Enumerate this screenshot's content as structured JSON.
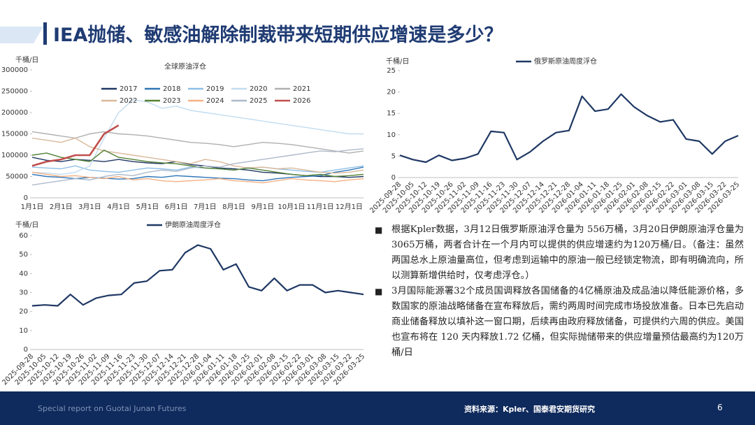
{
  "header": {
    "title": "IEA抛储、敏感油解除制裁带来短期供应增速是多少？"
  },
  "chart_data": [
    {
      "type": "line",
      "title": "全球原油浮仓",
      "y_axis_label": "千桶/日",
      "categories": [
        "1月1日",
        null,
        "2月1日",
        null,
        "3月1日",
        null,
        "4月1日",
        null,
        "5月1日",
        null,
        "6月1日",
        null,
        "7月1日",
        null,
        "8月1日",
        null,
        "9月1日",
        null,
        "10月1日",
        null,
        "11月1日",
        null,
        "12月1日",
        null
      ],
      "ylim": [
        0,
        300000
      ],
      "yticks": [
        0,
        50000,
        100000,
        150000,
        200000,
        250000,
        300000
      ],
      "grid": false,
      "series": [
        {
          "name": "2017",
          "color": "#1f3864",
          "values": [
            95000,
            88000,
            85000,
            90000,
            88000,
            85000,
            90000,
            85000,
            82000,
            80000,
            85000,
            78000,
            75000,
            70000,
            68000,
            65000,
            60000,
            58000,
            55000,
            52000,
            50000,
            50000,
            48000,
            50000
          ]
        },
        {
          "name": "2018",
          "color": "#2e75b6",
          "values": [
            55000,
            50000,
            48000,
            45000,
            48000,
            46000,
            44000,
            45000,
            50000,
            48000,
            52000,
            50000,
            48000,
            46000,
            45000,
            42000,
            40000,
            45000,
            48000,
            50000,
            52000,
            60000,
            65000,
            72000
          ]
        },
        {
          "name": "2019",
          "color": "#8fbfe6",
          "values": [
            72000,
            70000,
            68000,
            75000,
            65000,
            62000,
            60000,
            65000,
            70000,
            68000,
            65000,
            72000,
            70000,
            68000,
            65000,
            70000,
            72000,
            68000,
            65000,
            62000,
            60000,
            65000,
            70000,
            75000
          ]
        },
        {
          "name": "2020",
          "color": "#c2dcf0",
          "values": [
            60000,
            58000,
            55000,
            60000,
            75000,
            140000,
            200000,
            230000,
            225000,
            210000,
            215000,
            205000,
            200000,
            195000,
            190000,
            185000,
            180000,
            175000,
            170000,
            165000,
            160000,
            155000,
            150000,
            150000
          ]
        },
        {
          "name": "2021",
          "color": "#b0b0b0",
          "values": [
            155000,
            150000,
            145000,
            140000,
            150000,
            155000,
            150000,
            148000,
            145000,
            140000,
            135000,
            130000,
            128000,
            125000,
            120000,
            125000,
            130000,
            128000,
            125000,
            120000,
            115000,
            110000,
            105000,
            110000
          ]
        },
        {
          "name": "2022",
          "color": "#d9b99b",
          "values": [
            140000,
            135000,
            130000,
            140000,
            120000,
            110000,
            105000,
            100000,
            95000,
            90000,
            85000,
            80000,
            90000,
            85000,
            75000,
            70000,
            72000,
            68000,
            70000,
            65000,
            60000,
            58000,
            60000,
            65000
          ]
        },
        {
          "name": "2023",
          "color": "#548235",
          "values": [
            100000,
            105000,
            95000,
            90000,
            85000,
            112000,
            95000,
            90000,
            85000,
            82000,
            80000,
            75000,
            70000,
            68000,
            65000,
            70000,
            65000,
            60000,
            55000,
            52000,
            55000,
            50000,
            52000,
            55000
          ]
        },
        {
          "name": "2024",
          "color": "#f4b183",
          "values": [
            60000,
            55000,
            50000,
            52000,
            48000,
            45000,
            50000,
            42000,
            45000,
            40000,
            38000,
            40000,
            42000,
            45000,
            40000,
            38000,
            35000,
            40000,
            45000,
            42000,
            40000,
            38000,
            42000,
            45000
          ]
        },
        {
          "name": "2025",
          "color": "#adb9ca",
          "values": [
            30000,
            35000,
            40000,
            45000,
            42000,
            50000,
            55000,
            52000,
            60000,
            65000,
            62000,
            70000,
            75000,
            72000,
            80000,
            85000,
            90000,
            95000,
            100000,
            105000,
            110000,
            108000,
            112000,
            115000
          ]
        },
        {
          "name": "2026",
          "color": "#c0504d",
          "values": [
            75000,
            85000,
            90000,
            100000,
            100000,
            150000,
            170000,
            null,
            null,
            null,
            null,
            null,
            null,
            null,
            null,
            null,
            null,
            null,
            null,
            null,
            null,
            null,
            null,
            null
          ]
        }
      ]
    },
    {
      "type": "line",
      "y_axis_label": "千桶/日",
      "categories": [
        "2025-09-28",
        "2025-10-05",
        "2025-10-12",
        "2025-10-19",
        "2025-10-26",
        "2025-11-02",
        "2025-11-09",
        "2025-11-16",
        "2025-11-23",
        "2025-11-30",
        "2025-12-07",
        "2025-12-14",
        "2025-12-21",
        "2025-12-28",
        "2026-01-04",
        "2026-01-11",
        "2026-01-18",
        "2026-01-25",
        "2026-02-01",
        "2026-02-08",
        "2026-02-15",
        "2026-02-22",
        "2026-03-01",
        "2026-03-08",
        "2026-03-15",
        "2026-03-22",
        "2026-03-25"
      ],
      "ylim": [
        0,
        25
      ],
      "yticks": [
        0,
        5,
        10,
        15,
        20,
        25
      ],
      "grid": false,
      "series": [
        {
          "name": "俄罗斯原油周度浮仓",
          "color": "#1f3864",
          "values": [
            5.2,
            4.2,
            3.6,
            5.2,
            4.0,
            4.5,
            5.5,
            10.8,
            10.5,
            4.2,
            6.0,
            8.5,
            10.5,
            11.0,
            19.0,
            15.5,
            16.0,
            19.5,
            16.5,
            14.5,
            13.0,
            13.5,
            9.0,
            8.5,
            5.5,
            8.5,
            9.8
          ]
        }
      ]
    },
    {
      "type": "line",
      "y_axis_label": "千桶/日",
      "categories": [
        "2025-09-28",
        "2025-10-05",
        "2025-10-12",
        "2025-10-19",
        "2025-10-26",
        "2025-11-02",
        "2025-11-09",
        "2025-11-16",
        "2025-11-23",
        "2025-11-30",
        "2025-12-07",
        "2025-12-14",
        "2025-12-21",
        "2025-12-28",
        "2026-01-04",
        "2026-01-11",
        "2026-01-18",
        "2026-01-25",
        "2026-02-01",
        "2026-02-08",
        "2026-02-15",
        "2026-02-22",
        "2026-03-01",
        "2026-03-08",
        "2026-03-15",
        "2026-03-22",
        "2026-03-25"
      ],
      "ylim": [
        0,
        60
      ],
      "yticks": [
        0,
        10,
        20,
        30,
        40,
        50,
        60
      ],
      "grid": false,
      "series": [
        {
          "name": "伊朗原油周度浮仓",
          "color": "#1f3864",
          "values": [
            23,
            23.5,
            23,
            29,
            23.5,
            27,
            28.5,
            29,
            35,
            36,
            41.5,
            42,
            51,
            55,
            53,
            42,
            45,
            33,
            31,
            37.5,
            31,
            34,
            34,
            30,
            31,
            30,
            29
          ]
        }
      ]
    }
  ],
  "bullets": [
    "根据Kpler数据，3月12日俄罗斯原油浮仓量为 556万桶，3月20日伊朗原油浮仓量为3065万桶，两者合计在一个月内可以提供的供应增速约为120万桶/日。（备注：虽然两国总水上原油量高位，但考虑到运输中的原油一般已经锁定物流，即有明确流向，所以测算新增供给时，仅考虑浮仓。）",
    "3月国际能源署32个成员国调释放各国储备的4亿桶原油及成品油以降低能源价格，多数国家的原油战略储备在宣布释放后，需约两周时间完成市场投放准备。日本已先启动商业储备释放以填补这一窗口期，后续再由政府释放储备，可提供约六周的供应。美国也宣布将在 120 天内释放1.72 亿桶，但实际抛储带来的供应增量预估最高约为120万桶/日"
  ],
  "footer": {
    "left": "Special report on Guotai Junan Futures",
    "source": "资料来源：Kpler、国泰君安期货研究",
    "page": "6"
  }
}
